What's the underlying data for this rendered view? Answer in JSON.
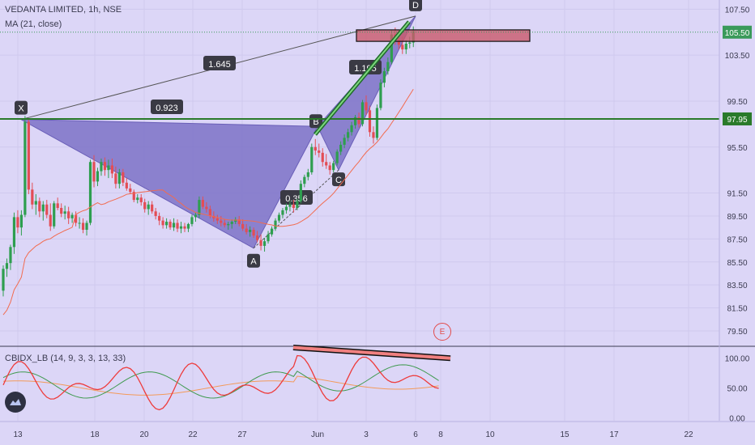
{
  "header": {
    "symbol_line": "VEDANTA LIMITED, 1h, NSE",
    "ma_line": "MA (21, close)"
  },
  "indicator": {
    "label": "CBIDX_LB (14, 9, 3, 3, 13, 33)",
    "y_ticks": [
      "100.00",
      "50.00",
      "0.00"
    ]
  },
  "price_axis": {
    "ticks": [
      "107.50",
      "105.50",
      "103.50",
      "99.50",
      "97.95",
      "95.50",
      "91.50",
      "89.50",
      "87.50",
      "85.50",
      "83.50",
      "81.50",
      "79.50"
    ],
    "current_price": "105.50",
    "level_tag": "97.95"
  },
  "time_axis": {
    "ticks": [
      "13",
      "18",
      "20",
      "22",
      "27",
      "Jun",
      "3",
      "6",
      "8",
      "10",
      "15",
      "17",
      "22"
    ]
  },
  "pattern": {
    "points": [
      "X",
      "A",
      "B",
      "C",
      "D"
    ],
    "ratios": [
      "1.645",
      "0.923",
      "0.356",
      "1.195"
    ]
  },
  "events": {
    "marker": "E"
  },
  "colors": {
    "background": "#dcd6f7",
    "pattern_fill": "#7d72c7",
    "up_candle": "#2e9e4f",
    "down_candle": "#e34d55",
    "ma_line": "#f26b4f",
    "level_line": "#2a7a2a",
    "zone": "#c9596a"
  },
  "chart_data": {
    "type": "candlestick",
    "title": "VEDANTA LIMITED, 1h, NSE",
    "price_range": [
      78.3,
      108.3
    ],
    "indicator_range": [
      -5,
      120
    ],
    "harmonic_points": [
      {
        "label": "X",
        "price": 97.9
      },
      {
        "label": "A",
        "price": 86.7
      },
      {
        "label": "B",
        "price": 97.3
      },
      {
        "label": "C",
        "price": 93.5
      },
      {
        "label": "D",
        "price": 106.9
      }
    ],
    "horizontal_level": 97.95,
    "sell_zone": [
      104.7,
      105.7
    ],
    "candles": [
      [
        83.0,
        85.2,
        82.5,
        84.9
      ],
      [
        84.9,
        85.8,
        84.2,
        85.4
      ],
      [
        85.4,
        87.0,
        84.8,
        86.8
      ],
      [
        86.8,
        89.8,
        86.2,
        89.4
      ],
      [
        89.4,
        90.0,
        88.0,
        88.5
      ],
      [
        88.5,
        90.0,
        87.8,
        89.6
      ],
      [
        89.6,
        98.2,
        89.4,
        97.7
      ],
      [
        97.7,
        97.9,
        91.4,
        91.8
      ],
      [
        91.8,
        92.4,
        90.1,
        90.5
      ],
      [
        90.5,
        91.4,
        89.6,
        90.8
      ],
      [
        90.8,
        91.1,
        89.4,
        89.9
      ],
      [
        89.9,
        90.8,
        89.1,
        90.5
      ],
      [
        90.5,
        90.9,
        89.3,
        89.6
      ],
      [
        89.6,
        90.6,
        88.2,
        88.6
      ],
      [
        88.6,
        90.8,
        88.4,
        90.6
      ],
      [
        90.6,
        91.1,
        90.0,
        90.2
      ],
      [
        90.2,
        90.6,
        89.4,
        89.7
      ],
      [
        89.7,
        90.4,
        89.2,
        89.9
      ],
      [
        89.9,
        90.3,
        88.8,
        89.3
      ],
      [
        89.3,
        89.8,
        88.9,
        89.6
      ],
      [
        89.6,
        89.9,
        88.6,
        88.9
      ],
      [
        88.9,
        89.4,
        88.4,
        88.9
      ],
      [
        88.9,
        89.3,
        88.0,
        88.3
      ],
      [
        88.3,
        89.1,
        87.8,
        88.9
      ],
      [
        88.9,
        94.4,
        88.7,
        94.2
      ],
      [
        94.2,
        94.8,
        92.0,
        92.5
      ],
      [
        92.5,
        93.7,
        92.1,
        93.4
      ],
      [
        93.4,
        94.5,
        93.0,
        94.2
      ],
      [
        94.2,
        94.6,
        93.0,
        93.5
      ],
      [
        93.5,
        94.4,
        92.8,
        93.9
      ],
      [
        93.9,
        94.5,
        92.8,
        93.2
      ],
      [
        93.2,
        93.8,
        91.9,
        92.3
      ],
      [
        92.3,
        93.6,
        91.9,
        93.3
      ],
      [
        93.3,
        93.6,
        92.1,
        92.4
      ],
      [
        92.4,
        92.8,
        91.7,
        91.9
      ],
      [
        91.9,
        92.3,
        91.4,
        91.6
      ],
      [
        91.6,
        91.8,
        90.7,
        90.9
      ],
      [
        90.9,
        91.4,
        90.6,
        91.1
      ],
      [
        91.1,
        91.4,
        90.4,
        90.7
      ],
      [
        90.7,
        91.0,
        89.8,
        90.1
      ],
      [
        90.1,
        90.8,
        89.6,
        90.5
      ],
      [
        90.5,
        90.8,
        89.7,
        89.9
      ],
      [
        89.9,
        90.2,
        89.2,
        89.5
      ],
      [
        89.5,
        89.8,
        88.7,
        89.1
      ],
      [
        89.1,
        89.4,
        88.4,
        88.7
      ],
      [
        88.7,
        89.3,
        88.4,
        89.0
      ],
      [
        89.0,
        89.2,
        88.3,
        88.5
      ],
      [
        88.5,
        89.3,
        88.2,
        88.9
      ],
      [
        88.9,
        89.2,
        88.1,
        88.4
      ],
      [
        88.4,
        89.0,
        88.0,
        88.6
      ],
      [
        88.6,
        88.9,
        88.1,
        88.4
      ],
      [
        88.4,
        88.9,
        88.1,
        88.8
      ],
      [
        88.8,
        89.6,
        88.6,
        89.4
      ],
      [
        89.4,
        89.8,
        89.0,
        89.6
      ],
      [
        89.6,
        91.2,
        89.3,
        90.9
      ],
      [
        90.9,
        91.2,
        90.1,
        90.3
      ],
      [
        90.3,
        90.7,
        89.8,
        90.1
      ],
      [
        90.1,
        90.4,
        89.3,
        89.5
      ],
      [
        89.5,
        89.9,
        89.0,
        89.3
      ],
      [
        89.3,
        89.6,
        88.8,
        89.1
      ],
      [
        89.1,
        89.5,
        88.6,
        88.9
      ],
      [
        88.9,
        89.2,
        88.5,
        88.7
      ],
      [
        88.7,
        89.0,
        88.3,
        88.8
      ],
      [
        88.8,
        89.2,
        88.4,
        89.0
      ],
      [
        89.0,
        89.4,
        88.8,
        89.2
      ],
      [
        89.2,
        89.5,
        88.6,
        88.8
      ],
      [
        88.8,
        89.2,
        88.2,
        88.4
      ],
      [
        88.4,
        88.8,
        87.9,
        88.1
      ],
      [
        88.1,
        88.6,
        87.7,
        88.3
      ],
      [
        88.3,
        88.5,
        87.6,
        87.8
      ],
      [
        87.8,
        88.2,
        87.2,
        87.4
      ],
      [
        87.4,
        87.9,
        86.5,
        86.9
      ],
      [
        86.9,
        87.6,
        86.4,
        87.3
      ],
      [
        87.3,
        88.2,
        87.1,
        87.9
      ],
      [
        87.9,
        88.6,
        87.7,
        88.4
      ],
      [
        88.4,
        89.3,
        88.2,
        89.1
      ],
      [
        89.1,
        89.8,
        88.9,
        89.6
      ],
      [
        89.6,
        90.2,
        89.3,
        90.0
      ],
      [
        90.0,
        90.6,
        89.7,
        90.3
      ],
      [
        90.3,
        90.8,
        89.9,
        90.5
      ],
      [
        90.5,
        90.9,
        89.8,
        90.2
      ],
      [
        90.2,
        91.0,
        90.0,
        90.8
      ],
      [
        90.8,
        92.6,
        90.6,
        92.3
      ],
      [
        92.3,
        93.1,
        92.0,
        92.9
      ],
      [
        92.9,
        93.6,
        92.6,
        93.3
      ],
      [
        93.3,
        95.8,
        93.1,
        95.5
      ],
      [
        95.5,
        96.2,
        94.8,
        95.2
      ],
      [
        95.2,
        95.8,
        94.6,
        95.0
      ],
      [
        95.0,
        95.4,
        93.8,
        94.2
      ],
      [
        94.2,
        94.9,
        93.6,
        93.9
      ],
      [
        93.9,
        94.2,
        93.1,
        93.5
      ],
      [
        93.5,
        94.3,
        93.3,
        94.1
      ],
      [
        94.1,
        95.3,
        93.9,
        95.1
      ],
      [
        95.1,
        96.0,
        94.8,
        95.7
      ],
      [
        95.7,
        96.6,
        95.4,
        96.3
      ],
      [
        96.3,
        97.1,
        96.0,
        96.8
      ],
      [
        96.8,
        97.7,
        96.5,
        97.4
      ],
      [
        97.4,
        98.3,
        97.1,
        98.1
      ],
      [
        98.1,
        98.5,
        97.2,
        97.5
      ],
      [
        97.5,
        99.6,
        97.3,
        99.4
      ],
      [
        99.4,
        100.0,
        98.3,
        98.7
      ],
      [
        98.7,
        99.1,
        96.4,
        96.8
      ],
      [
        96.8,
        97.3,
        95.8,
        96.3
      ],
      [
        96.3,
        99.2,
        96.1,
        98.9
      ],
      [
        98.9,
        101.4,
        98.7,
        101.1
      ],
      [
        101.1,
        102.4,
        100.7,
        102.1
      ],
      [
        102.1,
        103.3,
        101.8,
        102.9
      ],
      [
        102.9,
        105.7,
        102.7,
        105.3
      ],
      [
        105.3,
        105.9,
        104.4,
        104.8
      ],
      [
        104.8,
        105.5,
        104.0,
        104.4
      ],
      [
        104.4,
        105.1,
        103.6,
        104.0
      ],
      [
        104.0,
        104.8,
        103.6,
        104.5
      ],
      [
        104.5,
        105.1,
        104.1,
        104.6
      ],
      [
        104.6,
        106.0,
        104.2,
        105.6
      ]
    ]
  }
}
